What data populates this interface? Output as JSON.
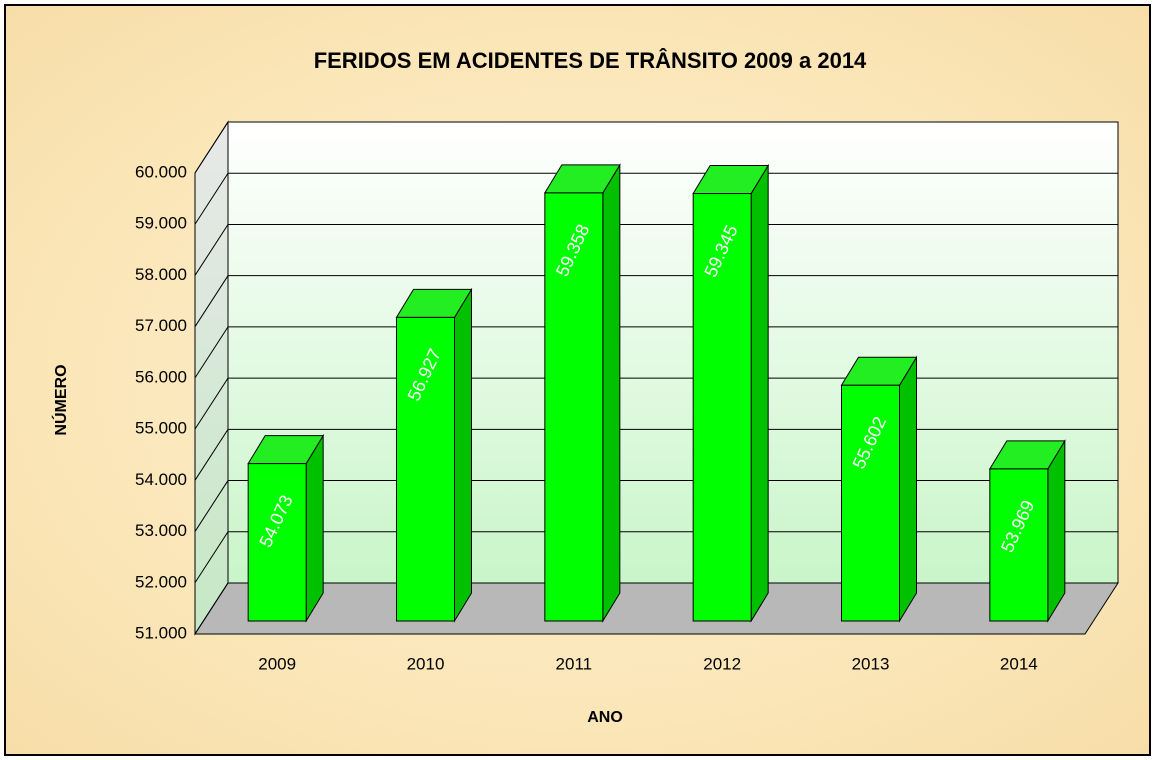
{
  "chart_data": {
    "type": "bar3d",
    "title": "FERIDOS EM ACIDENTES DE TRÂNSITO 2009 a  2014",
    "y_label": "NÚMERO",
    "x_label": "ANO",
    "categories": [
      "2009",
      "2010",
      "2011",
      "2012",
      "2013",
      "2014"
    ],
    "values": [
      54073,
      56927,
      59358,
      59345,
      55602,
      53969
    ],
    "value_labels": [
      "54.073",
      "56.927",
      "59.358",
      "59.345",
      "55.602",
      "53.969"
    ],
    "color": "#00ff00",
    "ylim": [
      51000,
      60000
    ],
    "yticks": [
      {
        "value": 51000,
        "label": "51.000"
      },
      {
        "value": 52000,
        "label": "52.000"
      },
      {
        "value": 53000,
        "label": "53.000"
      },
      {
        "value": 54000,
        "label": "54.000"
      },
      {
        "value": 55000,
        "label": "55.000"
      },
      {
        "value": 56000,
        "label": "56.000"
      },
      {
        "value": 57000,
        "label": "57.000"
      },
      {
        "value": 58000,
        "label": "58.000"
      },
      {
        "value": 59000,
        "label": "59.000"
      },
      {
        "value": 60000,
        "label": "60.000"
      }
    ],
    "grid": true
  }
}
